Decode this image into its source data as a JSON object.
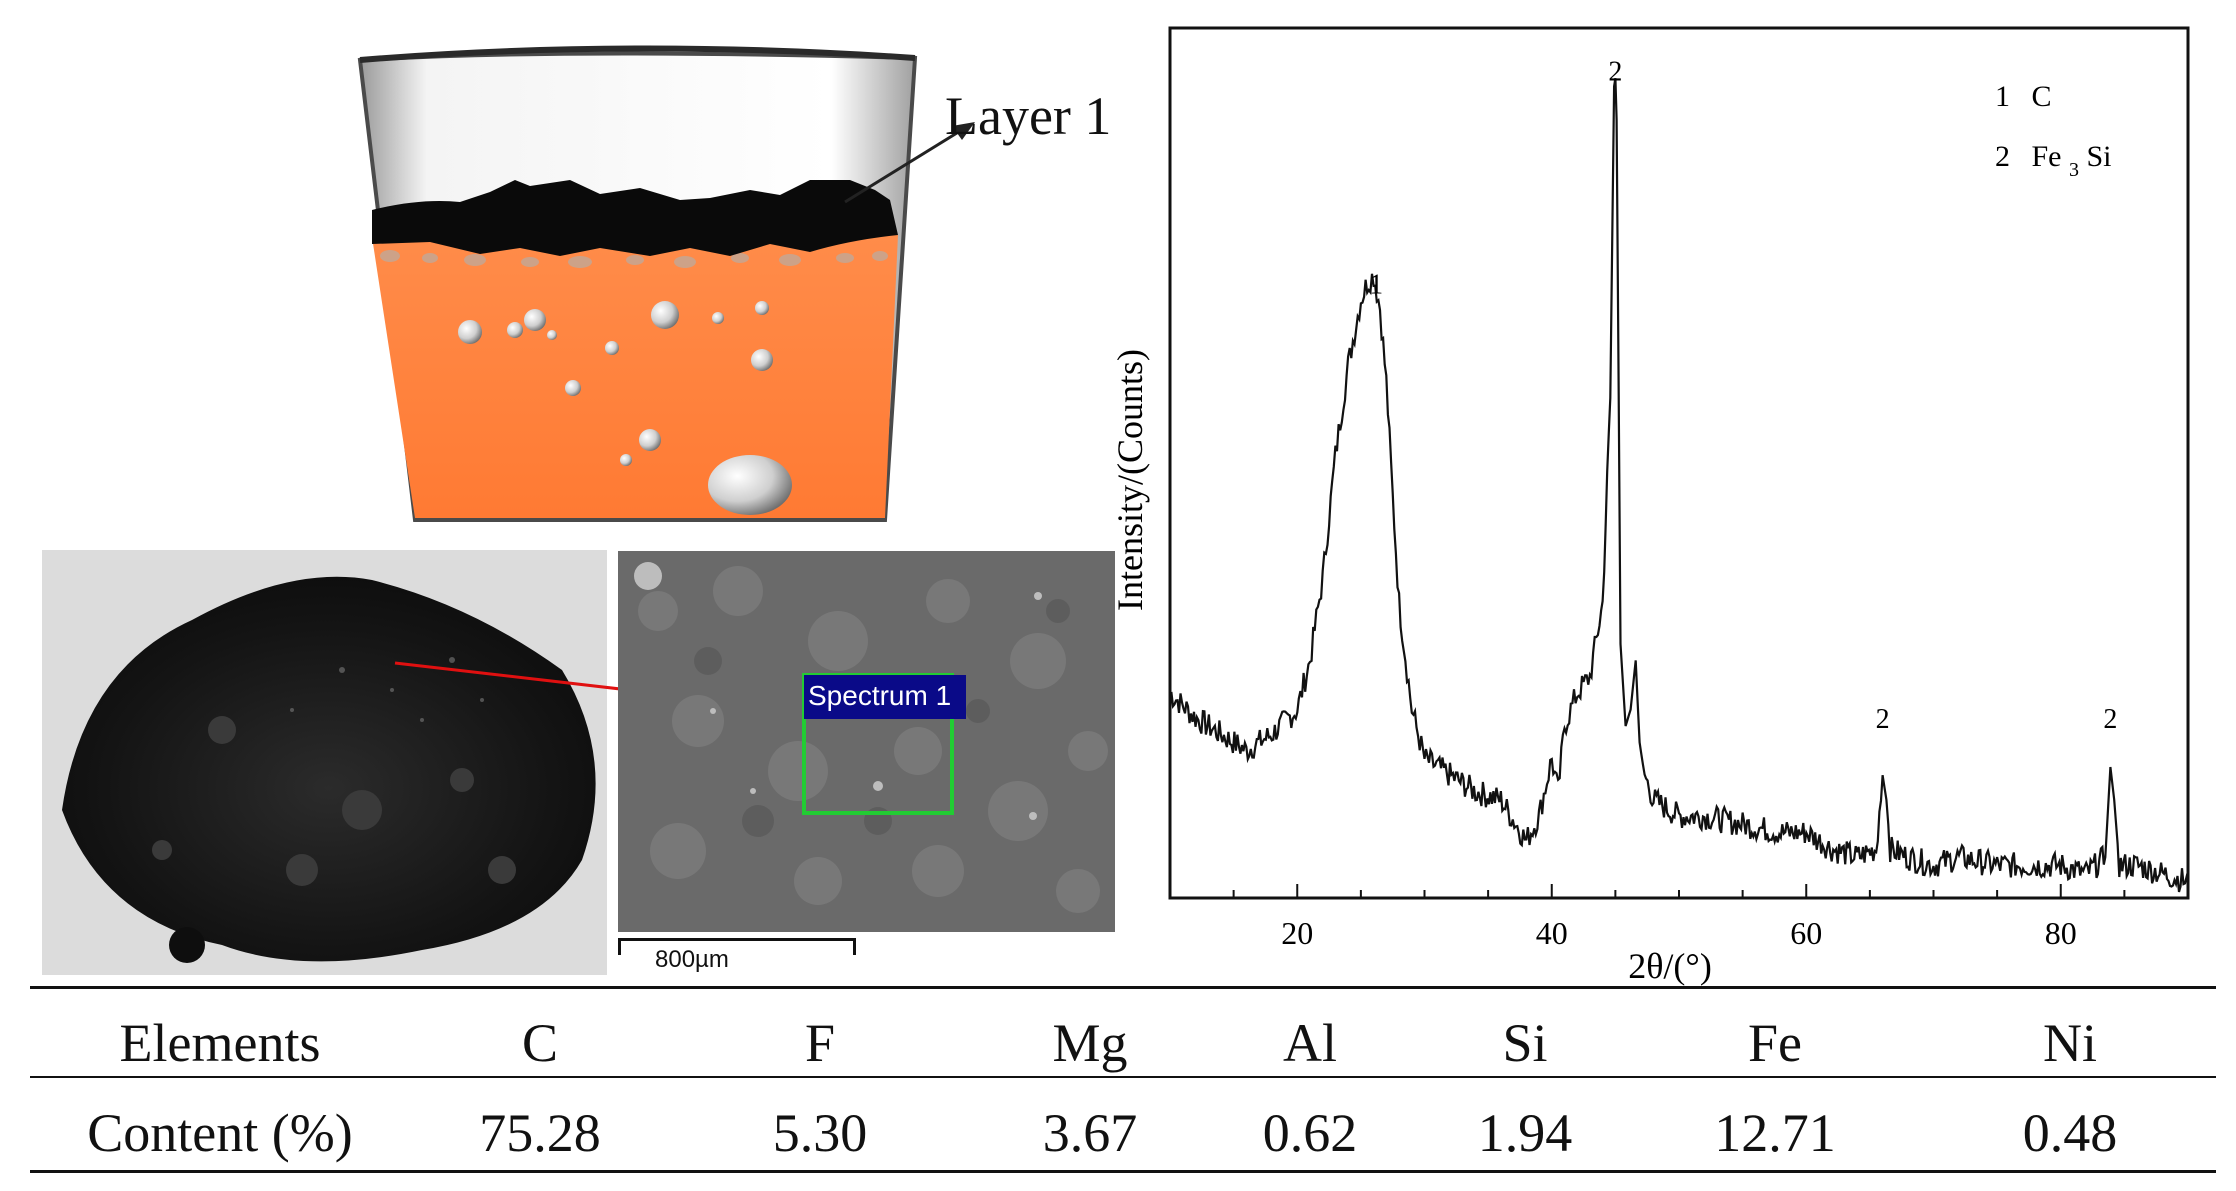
{
  "crucible": {
    "layer_label": "Layer 1"
  },
  "sem": {
    "spectrum_label": "Spectrum 1",
    "scale_label": "800µm"
  },
  "chart_data": {
    "type": "line",
    "title": "",
    "xlabel": "2θ/(°)",
    "ylabel": "Intensity/(Counts)",
    "xlim": [
      10,
      90
    ],
    "ylim": [
      0,
      100
    ],
    "xticks": [
      20,
      40,
      60,
      80
    ],
    "grid": false,
    "legend": [
      {
        "num": "1",
        "phase": "C"
      },
      {
        "num": "2",
        "phase": "Fe3Si",
        "base": "Fe",
        "sub": "3",
        "tail": "Si"
      }
    ],
    "peak_labels": [
      {
        "x": 26.2,
        "y": 72,
        "label": "1"
      },
      {
        "x": 45.0,
        "y": 98,
        "label": "2"
      },
      {
        "x": 66.0,
        "y": 19,
        "label": "2"
      },
      {
        "x": 83.9,
        "y": 19,
        "label": "2"
      }
    ],
    "series": [
      {
        "name": "XRD pattern",
        "x": [
          10,
          12,
          14,
          16,
          18,
          20,
          21,
          22,
          23,
          24,
          25,
          25.5,
          26,
          26.5,
          27,
          27.5,
          28,
          29,
          30,
          32,
          34,
          36,
          38,
          39,
          40,
          40.5,
          41,
          42,
          43,
          44,
          44.6,
          44.9,
          45.0,
          45.1,
          45.4,
          45.8,
          46.2,
          46.6,
          46.9,
          47.3,
          48,
          50,
          52,
          55,
          58,
          60,
          62,
          64,
          65.5,
          66.0,
          66.3,
          66.6,
          68,
          70,
          72,
          75,
          78,
          80,
          82,
          83.5,
          83.9,
          84.2,
          84.6,
          86,
          88,
          90
        ],
        "y": [
          24,
          21,
          19,
          17,
          19,
          22,
          28,
          38,
          53,
          64,
          72,
          74,
          75,
          71,
          62,
          48,
          35,
          22,
          16,
          14,
          12,
          11,
          6,
          9,
          16,
          12,
          20,
          24,
          26,
          35,
          60,
          98,
          99,
          94,
          30,
          20,
          22,
          28,
          18,
          14,
          11,
          9,
          9,
          8,
          7,
          7,
          5,
          4,
          5,
          14,
          11,
          5,
          4,
          3,
          4,
          3,
          3,
          3,
          2,
          4,
          15,
          11,
          3,
          3,
          2,
          1
        ]
      }
    ]
  },
  "table": {
    "header_label": "Elements",
    "row_label": "Content (%)",
    "elements": [
      "C",
      "F",
      "Mg",
      "Al",
      "Si",
      "Fe",
      "Ni"
    ],
    "values": [
      "75.28",
      "5.30",
      "3.67",
      "0.62",
      "1.94",
      "12.71",
      "0.48"
    ]
  }
}
